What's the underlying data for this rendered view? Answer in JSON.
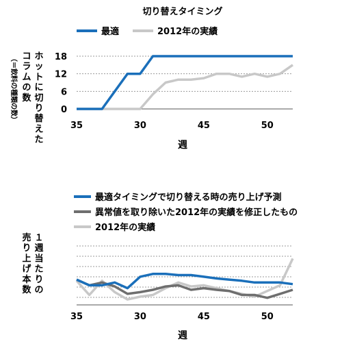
{
  "chart_data": [
    {
      "type": "line",
      "title": "切り替えタイミング",
      "xlabel": "週",
      "ylabel_lines": [
        "ホットに切り替えた",
        "コラムの数"
      ],
      "ylabel_sub": "（＝飲料の種類の数）",
      "x_ticks": [
        "35",
        "30",
        "45",
        "50"
      ],
      "y_ticks": [
        0,
        6,
        12,
        18
      ],
      "ylim": [
        0,
        18
      ],
      "x": [
        35,
        36,
        37,
        38,
        39,
        40,
        41,
        42,
        43,
        44,
        45,
        46,
        47,
        48,
        49,
        50,
        51,
        52
      ],
      "grid": "horizontal dotted",
      "legend_position": "top-left",
      "series": [
        {
          "name": "最適",
          "color": "#1a6fba",
          "values": [
            0,
            0,
            0,
            6,
            12,
            12,
            18,
            18,
            18,
            18,
            18,
            18,
            18,
            18,
            18,
            18,
            18,
            18
          ]
        },
        {
          "name": "2012年の実績",
          "color": "#c8c8c8",
          "values": [
            0,
            0,
            0,
            0,
            0,
            0,
            5,
            9,
            10,
            10,
            10.5,
            12,
            12,
            11,
            12,
            11,
            12,
            15
          ]
        }
      ]
    },
    {
      "type": "line",
      "ylabel_lines": [
        "１週当たりの",
        "売り上げ本数"
      ],
      "xlabel": "週",
      "x_ticks": [
        "35",
        "30",
        "45",
        "50"
      ],
      "y_ticks": [],
      "ylim": [
        0,
        10
      ],
      "x": [
        35,
        36,
        37,
        38,
        39,
        40,
        41,
        42,
        43,
        44,
        45,
        46,
        47,
        48,
        49,
        50,
        51,
        52
      ],
      "grid": "horizontal dotted",
      "legend_position": "top",
      "series": [
        {
          "name": "最適タイミングで切り替える時の売り上げ予測",
          "color": "#1a6fba",
          "values": [
            3.0,
            2.0,
            2.0,
            2.5,
            1.5,
            3.5,
            4.0,
            4.0,
            3.8,
            3.8,
            3.5,
            3.2,
            3.0,
            2.8,
            2.5,
            2.5,
            2.5,
            2.2
          ]
        },
        {
          "name": "異常値を取り除いた2012年の実績を修正したもの",
          "color": "#6e6e6e",
          "values": [
            3.0,
            2.0,
            2.5,
            1.8,
            0.5,
            0.8,
            1.2,
            1.8,
            2.0,
            1.2,
            1.5,
            1.2,
            1.0,
            0.3,
            0.3,
            -0.2,
            0.5,
            1.2
          ]
        },
        {
          "name": "2012年の実績",
          "color": "#c8c8c8",
          "values": [
            2.8,
            0.3,
            2.8,
            0.8,
            -0.5,
            0.0,
            0.3,
            1.5,
            2.5,
            1.8,
            2.0,
            1.5,
            1.0,
            0.5,
            0.0,
            1.0,
            2.0,
            6.7
          ]
        }
      ]
    }
  ]
}
